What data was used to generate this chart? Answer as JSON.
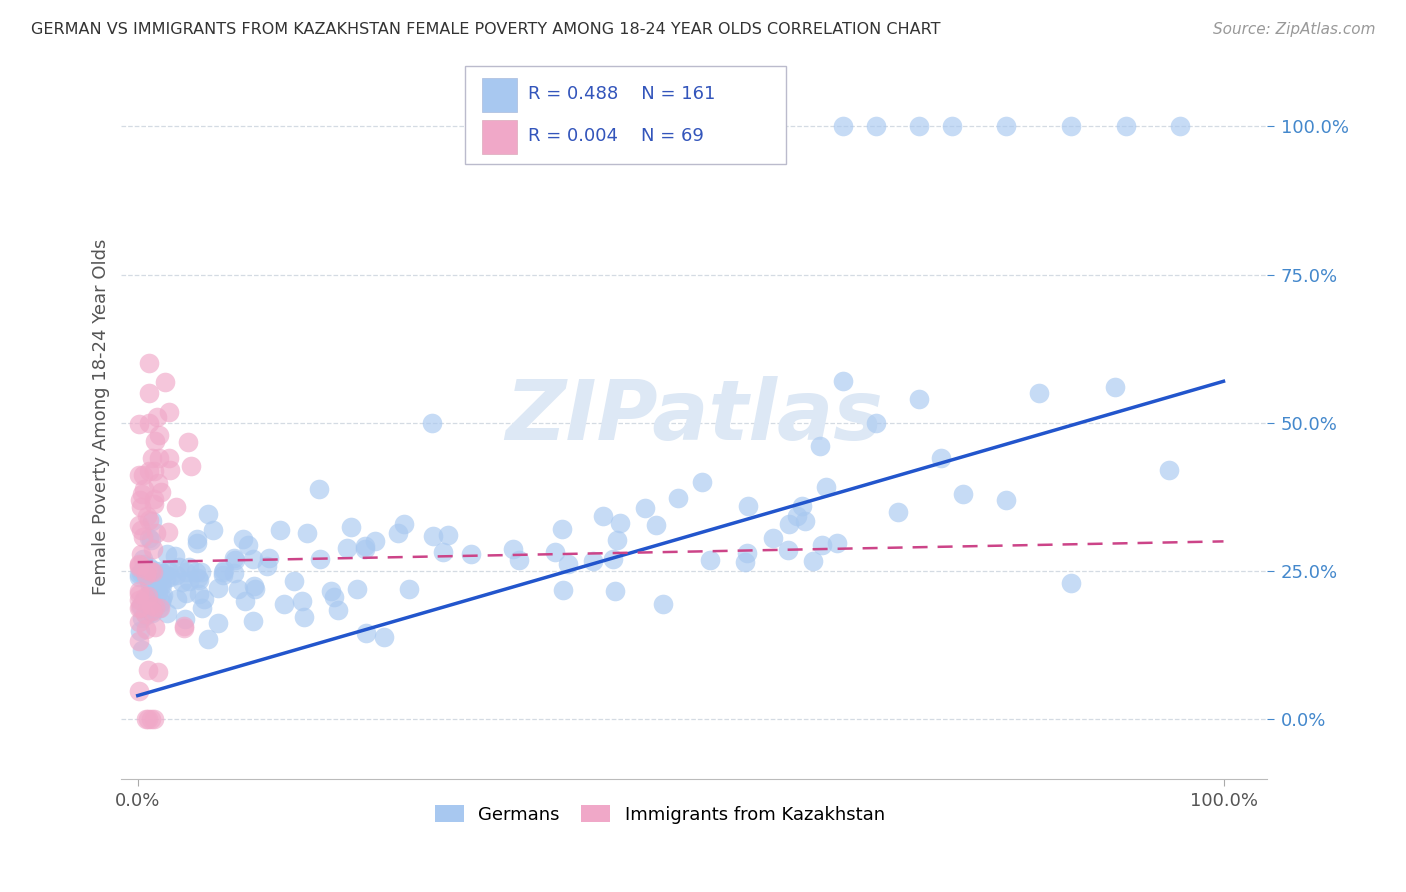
{
  "title": "GERMAN VS IMMIGRANTS FROM KAZAKHSTAN FEMALE POVERTY AMONG 18-24 YEAR OLDS CORRELATION CHART",
  "source": "Source: ZipAtlas.com",
  "ylabel": "Female Poverty Among 18-24 Year Olds",
  "legend_labels": [
    "Germans",
    "Immigrants from Kazakhstan"
  ],
  "blue_R_text": "R = 0.488",
  "blue_N_text": "N = 161",
  "pink_R_text": "R = 0.004",
  "pink_N_text": "N = 69",
  "blue_color": "#a8c8f0",
  "pink_color": "#f0a8c8",
  "blue_line_color": "#2255cc",
  "pink_line_color": "#cc4488",
  "legend_text_color": "#3355bb",
  "watermark_color": "#dde8f5",
  "bg_color": "#ffffff",
  "grid_color": "#d0d8e0",
  "blue_line_y0": 0.04,
  "blue_line_y1": 0.57,
  "pink_line_y0": 0.265,
  "pink_line_y1": 0.3,
  "ylim_min": -0.1,
  "ylim_max": 1.12,
  "xlim_min": -0.015,
  "xlim_max": 1.04
}
